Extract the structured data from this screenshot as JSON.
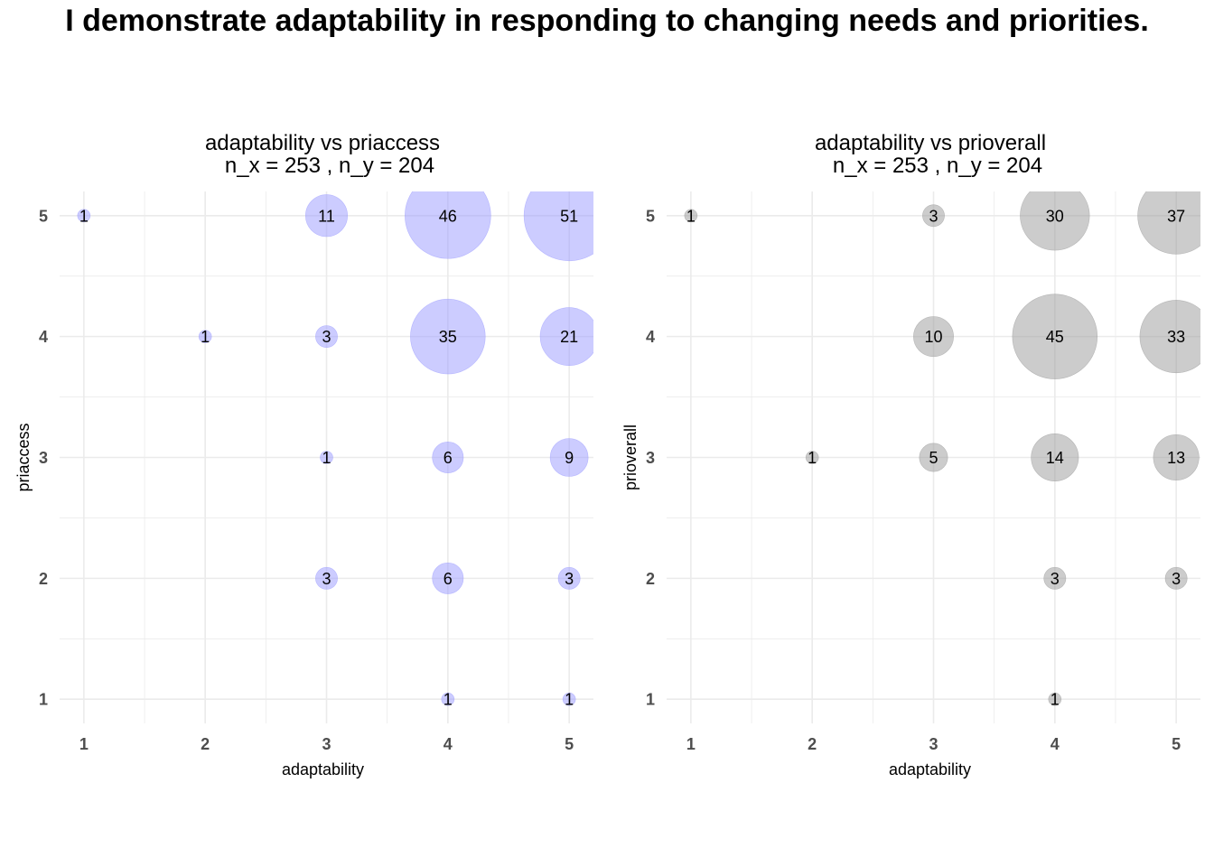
{
  "title": "I demonstrate adaptability in responding to changing needs and priorities.",
  "colors": {
    "panel1_fill": "#9999ff",
    "panel2_fill": "#999999",
    "grid": "#ebebeb",
    "axis_text": "#4d4d4d"
  },
  "chart_data": [
    {
      "type": "scatter",
      "title": "adaptability vs priaccess",
      "subtitle": "n_x = 253 , n_y = 204",
      "xlabel": "adaptability",
      "ylabel": "priaccess",
      "x_ticks": [
        1,
        2,
        3,
        4,
        5
      ],
      "y_ticks": [
        1,
        2,
        3,
        4,
        5
      ],
      "xlim": [
        0.8,
        5.2
      ],
      "ylim": [
        0.8,
        5.2
      ],
      "fill_color": "#9999ff",
      "points": [
        {
          "x": 1,
          "y": 5,
          "n": 1
        },
        {
          "x": 3,
          "y": 5,
          "n": 11
        },
        {
          "x": 4,
          "y": 5,
          "n": 46
        },
        {
          "x": 5,
          "y": 5,
          "n": 51
        },
        {
          "x": 2,
          "y": 4,
          "n": 1
        },
        {
          "x": 3,
          "y": 4,
          "n": 3
        },
        {
          "x": 4,
          "y": 4,
          "n": 35
        },
        {
          "x": 5,
          "y": 4,
          "n": 21
        },
        {
          "x": 3,
          "y": 3,
          "n": 1
        },
        {
          "x": 4,
          "y": 3,
          "n": 6
        },
        {
          "x": 5,
          "y": 3,
          "n": 9
        },
        {
          "x": 3,
          "y": 2,
          "n": 3
        },
        {
          "x": 4,
          "y": 2,
          "n": 6
        },
        {
          "x": 5,
          "y": 2,
          "n": 3
        },
        {
          "x": 4,
          "y": 1,
          "n": 1
        },
        {
          "x": 5,
          "y": 1,
          "n": 1
        }
      ]
    },
    {
      "type": "scatter",
      "title": "adaptability vs prioverall",
      "subtitle": "n_x = 253 , n_y = 204",
      "xlabel": "adaptability",
      "ylabel": "prioverall",
      "x_ticks": [
        1,
        2,
        3,
        4,
        5
      ],
      "y_ticks": [
        1,
        2,
        3,
        4,
        5
      ],
      "xlim": [
        0.8,
        5.2
      ],
      "ylim": [
        0.8,
        5.2
      ],
      "fill_color": "#999999",
      "points": [
        {
          "x": 1,
          "y": 5,
          "n": 1
        },
        {
          "x": 3,
          "y": 5,
          "n": 3
        },
        {
          "x": 4,
          "y": 5,
          "n": 30
        },
        {
          "x": 5,
          "y": 5,
          "n": 37
        },
        {
          "x": 3,
          "y": 4,
          "n": 10
        },
        {
          "x": 4,
          "y": 4,
          "n": 45
        },
        {
          "x": 5,
          "y": 4,
          "n": 33
        },
        {
          "x": 2,
          "y": 3,
          "n": 1
        },
        {
          "x": 3,
          "y": 3,
          "n": 5
        },
        {
          "x": 4,
          "y": 3,
          "n": 14
        },
        {
          "x": 5,
          "y": 3,
          "n": 13
        },
        {
          "x": 4,
          "y": 2,
          "n": 3
        },
        {
          "x": 5,
          "y": 2,
          "n": 3
        },
        {
          "x": 4,
          "y": 1,
          "n": 1
        }
      ]
    }
  ]
}
